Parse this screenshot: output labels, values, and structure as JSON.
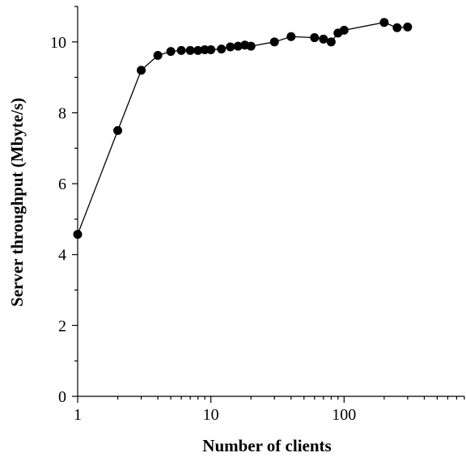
{
  "chart_data": {
    "type": "line",
    "title": "",
    "xlabel": "Number of clients",
    "ylabel": "Server throughput (Mbyte/s)",
    "x_scale": "log",
    "xlim": [
      1,
      800
    ],
    "ylim": [
      0,
      11
    ],
    "x_ticks": [
      {
        "value": 1,
        "label": "1"
      },
      {
        "value": 10,
        "label": "10"
      },
      {
        "value": 100,
        "label": "100"
      }
    ],
    "y_ticks": [
      {
        "value": 0,
        "label": "0"
      },
      {
        "value": 2,
        "label": "2"
      },
      {
        "value": 4,
        "label": "4"
      },
      {
        "value": 6,
        "label": "6"
      },
      {
        "value": 8,
        "label": "8"
      },
      {
        "value": 10,
        "label": "10"
      }
    ],
    "grid": false,
    "legend": "none",
    "colors": {
      "line": "#000000",
      "marker": "#000000",
      "axis": "#000000"
    },
    "series": [
      {
        "x": [
          1,
          2,
          3,
          4,
          5,
          6,
          7,
          8,
          9,
          10,
          12,
          14,
          16,
          18,
          20,
          30,
          40,
          60,
          70,
          80,
          90,
          100,
          200,
          250,
          300
        ],
        "y": [
          4.57,
          7.5,
          9.2,
          9.62,
          9.73,
          9.76,
          9.76,
          9.76,
          9.78,
          9.78,
          9.8,
          9.86,
          9.88,
          9.91,
          9.88,
          10.0,
          10.15,
          10.12,
          10.08,
          10.0,
          10.25,
          10.33,
          10.55,
          10.4,
          10.42
        ]
      }
    ]
  }
}
